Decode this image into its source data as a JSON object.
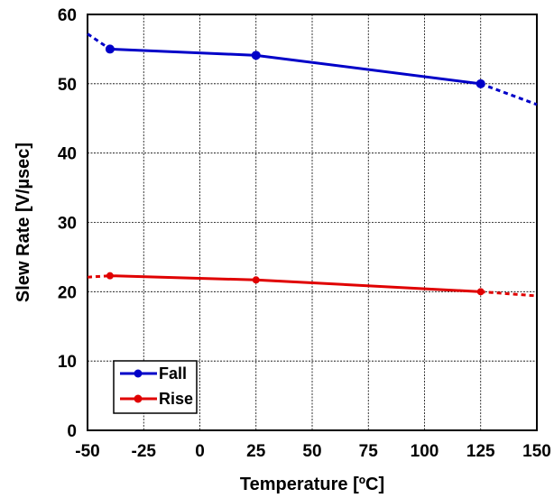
{
  "chart_data": {
    "type": "line",
    "xlabel": "Temperature [ºC]",
    "ylabel": "Slew Rate [V/µsec]",
    "xlim": [
      -50,
      150
    ],
    "ylim": [
      0,
      60
    ],
    "xticks": [
      -50,
      -25,
      0,
      25,
      50,
      75,
      100,
      125,
      150
    ],
    "yticks": [
      0,
      10,
      20,
      30,
      40,
      50,
      60
    ],
    "grid": true,
    "legend_position": "bottom-left",
    "series": [
      {
        "name": "Fall",
        "color": "#0000c8",
        "x": [
          -40,
          25,
          125
        ],
        "y": [
          55.0,
          54.1,
          50.0
        ],
        "trend_x": [
          -50,
          150
        ],
        "trend_y": [
          57.2,
          47.0
        ]
      },
      {
        "name": "Rise",
        "color": "#e00000",
        "x": [
          -40,
          25,
          125
        ],
        "y": [
          22.3,
          21.7,
          20.0
        ],
        "trend_x": [
          -50,
          150
        ],
        "trend_y": [
          22.1,
          19.4
        ]
      }
    ]
  }
}
